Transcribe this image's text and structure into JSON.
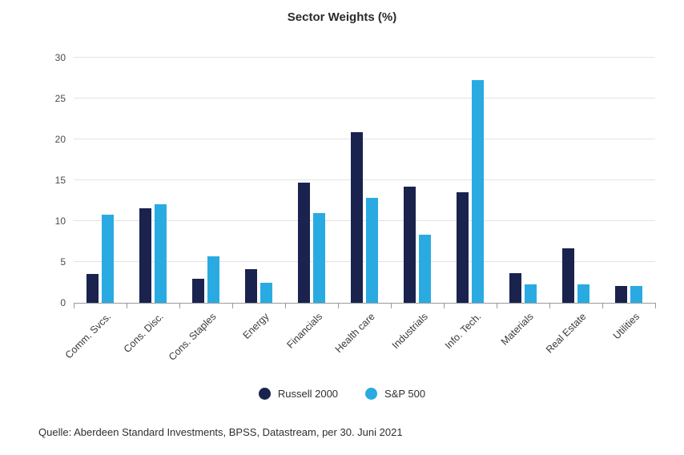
{
  "source_note": "Quelle: Aberdeen Standard Investments, BPSS, Datastream, per 30. Juni 2021",
  "chart_data": {
    "type": "bar",
    "title": "Sector Weights (%)",
    "categories": [
      "Comm. Svcs.",
      "Cons. Disc.",
      "Cons. Staples",
      "Energy",
      "Financials",
      "Health care",
      "Industrials",
      "Info. Tech.",
      "Materials",
      "Real Estate",
      "Utilities"
    ],
    "series": [
      {
        "name": "Russell 2000",
        "color": "#19234e",
        "values": [
          3.5,
          11.6,
          2.9,
          4.1,
          14.7,
          20.9,
          14.2,
          13.5,
          3.6,
          6.7,
          2.1
        ]
      },
      {
        "name": "S&P 500",
        "color": "#29abe2",
        "values": [
          10.8,
          12.1,
          5.7,
          2.5,
          11.0,
          12.8,
          8.3,
          27.3,
          2.3,
          2.3,
          2.1
        ]
      }
    ],
    "xlabel": "",
    "ylabel": "",
    "ylim": [
      0,
      30
    ],
    "yticks": [
      0,
      5,
      10,
      15,
      20,
      25,
      30
    ],
    "grid": true,
    "legend_position": "bottom"
  }
}
